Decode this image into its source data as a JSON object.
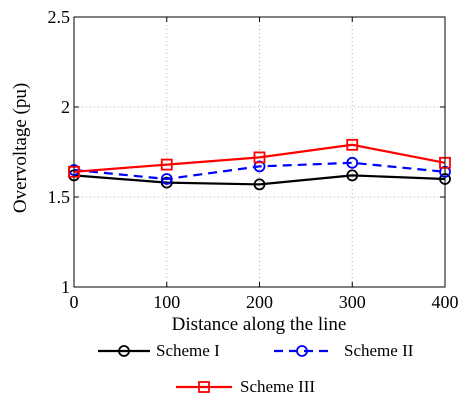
{
  "chart_data": {
    "type": "line",
    "title": "",
    "xlabel": "Distance along the line",
    "ylabel": "Overvoltage (pu)",
    "x": [
      0,
      100,
      200,
      300,
      400
    ],
    "xlim": [
      0,
      400
    ],
    "ylim": [
      1,
      2.5
    ],
    "xticks": [
      "0",
      "100",
      "200",
      "300",
      "400"
    ],
    "yticks": [
      "1",
      "1.5",
      "2",
      "2.5"
    ],
    "grid": true,
    "legend_position": "below",
    "series": [
      {
        "name": "Scheme I",
        "values": [
          1.62,
          1.58,
          1.57,
          1.62,
          1.6
        ],
        "color": "#000000",
        "line_style": "solid",
        "marker": "circle"
      },
      {
        "name": "Scheme II",
        "values": [
          1.65,
          1.6,
          1.67,
          1.69,
          1.64
        ],
        "color": "#0000ff",
        "line_style": "dashed",
        "marker": "circle"
      },
      {
        "name": "Scheme III",
        "values": [
          1.64,
          1.68,
          1.72,
          1.79,
          1.69
        ],
        "color": "#ff0000",
        "line_style": "solid",
        "marker": "square"
      }
    ]
  }
}
